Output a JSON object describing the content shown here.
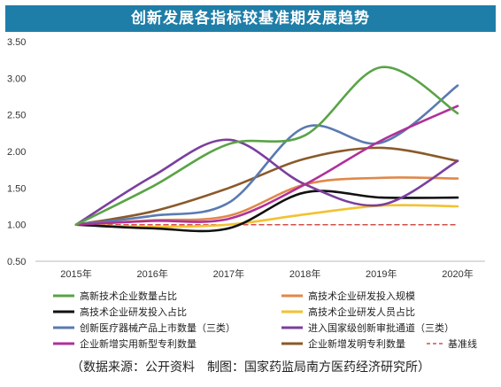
{
  "chart_data": {
    "type": "line",
    "title": "创新发展各指标较基准期发展趋势",
    "source": "（数据来源：公开资料　制图：国家药监局南方医药经济研究所）",
    "categories": [
      "2015年",
      "2016年",
      "2017年",
      "2018年",
      "2019年",
      "2020年"
    ],
    "y_ticks": [
      "0.50",
      "1.00",
      "1.50",
      "2.00",
      "2.50",
      "3.00",
      "3.50"
    ],
    "ylim": [
      0.5,
      3.5
    ],
    "grid": false,
    "legend_position": "bottom",
    "series": [
      {
        "name": "高新技术企业数量占比",
        "color": "#5aa346",
        "dash": false,
        "values": [
          1.0,
          1.52,
          2.1,
          2.22,
          3.15,
          2.52
        ]
      },
      {
        "name": "高技术企业研发投入规模",
        "color": "#e0884a",
        "dash": false,
        "values": [
          1.0,
          1.06,
          1.12,
          1.55,
          1.64,
          1.63
        ]
      },
      {
        "name": "高技术企业研发投入占比",
        "color": "#111111",
        "dash": false,
        "values": [
          1.0,
          0.95,
          0.95,
          1.44,
          1.37,
          1.37
        ]
      },
      {
        "name": "高技术企业研发人员占比",
        "color": "#f2c230",
        "dash": false,
        "values": [
          1.0,
          0.97,
          1.0,
          1.14,
          1.26,
          1.25
        ]
      },
      {
        "name": "创新医疗器械产品上市数量（三类）",
        "color": "#5a7ab0",
        "dash": false,
        "values": [
          1.0,
          1.12,
          1.3,
          2.33,
          2.12,
          2.9
        ]
      },
      {
        "name": "进入国家级创新审批通道（三类）",
        "color": "#7b3f9e",
        "dash": false,
        "values": [
          1.0,
          1.66,
          2.16,
          1.55,
          1.27,
          1.87
        ]
      },
      {
        "name": "企业新增实用新型专利数量",
        "color": "#b0309a",
        "dash": false,
        "values": [
          1.0,
          1.05,
          1.08,
          1.55,
          2.15,
          2.62
        ]
      },
      {
        "name": "企业新增发明专利数量",
        "color": "#8a5a2a",
        "dash": false,
        "values": [
          1.0,
          1.18,
          1.5,
          1.9,
          2.05,
          1.87
        ]
      },
      {
        "name": "基准线",
        "color": "#d0504a",
        "dash": true,
        "values": [
          1.0,
          1.0,
          1.0,
          1.0,
          1.0,
          1.0
        ]
      }
    ]
  }
}
